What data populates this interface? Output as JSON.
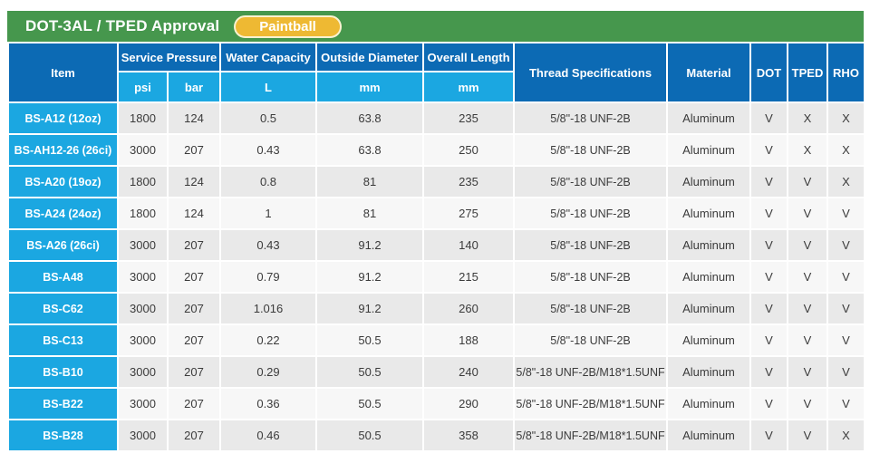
{
  "header": {
    "title": "DOT-3AL / TPED Approval",
    "badge": "Paintball"
  },
  "colors": {
    "header_green": "#46974d",
    "badge_gold": "#eeb933",
    "badge_border": "#faf2d0",
    "header_dark_blue": "#0c6ab4",
    "header_light_blue": "#1ba7e1",
    "item_cell_blue": "#1ba7e1",
    "row_gray": "#e9e9e9",
    "row_light": "#f7f7f7",
    "cell_text": "#3b3b3b"
  },
  "table": {
    "columns": {
      "item": "Item",
      "service_pressure": "Service Pressure",
      "psi": "psi",
      "bar": "bar",
      "water_capacity": "Water Capacity",
      "water_capacity_unit": "L",
      "outside_diameter": "Outside Diameter",
      "outside_diameter_unit": "mm",
      "overall_length": "Overall Length",
      "overall_length_unit": "mm",
      "thread_specifications": "Thread Specifications",
      "material": "Material",
      "dot": "DOT",
      "tped": "TPED",
      "rho": "RHO"
    },
    "rows": [
      {
        "item": "BS-A12 (12oz)",
        "psi": "1800",
        "bar": "124",
        "water_capacity": "0.5",
        "outside_diameter": "63.8",
        "overall_length": "235",
        "thread": "5/8\"-18 UNF-2B",
        "material": "Aluminum",
        "dot": "V",
        "tped": "X",
        "rho": "X"
      },
      {
        "item": "BS-AH12-26 (26ci)",
        "psi": "3000",
        "bar": "207",
        "water_capacity": "0.43",
        "outside_diameter": "63.8",
        "overall_length": "250",
        "thread": "5/8\"-18 UNF-2B",
        "material": "Aluminum",
        "dot": "V",
        "tped": "X",
        "rho": "X"
      },
      {
        "item": "BS-A20 (19oz)",
        "psi": "1800",
        "bar": "124",
        "water_capacity": "0.8",
        "outside_diameter": "81",
        "overall_length": "235",
        "thread": "5/8\"-18 UNF-2B",
        "material": "Aluminum",
        "dot": "V",
        "tped": "V",
        "rho": "X"
      },
      {
        "item": "BS-A24 (24oz)",
        "psi": "1800",
        "bar": "124",
        "water_capacity": "1",
        "outside_diameter": "81",
        "overall_length": "275",
        "thread": "5/8\"-18 UNF-2B",
        "material": "Aluminum",
        "dot": "V",
        "tped": "V",
        "rho": "V"
      },
      {
        "item": "BS-A26 (26ci)",
        "psi": "3000",
        "bar": "207",
        "water_capacity": "0.43",
        "outside_diameter": "91.2",
        "overall_length": "140",
        "thread": "5/8\"-18 UNF-2B",
        "material": "Aluminum",
        "dot": "V",
        "tped": "V",
        "rho": "V"
      },
      {
        "item": "BS-A48",
        "psi": "3000",
        "bar": "207",
        "water_capacity": "0.79",
        "outside_diameter": "91.2",
        "overall_length": "215",
        "thread": "5/8\"-18 UNF-2B",
        "material": "Aluminum",
        "dot": "V",
        "tped": "V",
        "rho": "V"
      },
      {
        "item": "BS-C62",
        "psi": "3000",
        "bar": "207",
        "water_capacity": "1.016",
        "outside_diameter": "91.2",
        "overall_length": "260",
        "thread": "5/8\"-18 UNF-2B",
        "material": "Aluminum",
        "dot": "V",
        "tped": "V",
        "rho": "V"
      },
      {
        "item": "BS-C13",
        "psi": "3000",
        "bar": "207",
        "water_capacity": "0.22",
        "outside_diameter": "50.5",
        "overall_length": "188",
        "thread": "5/8\"-18 UNF-2B",
        "material": "Aluminum",
        "dot": "V",
        "tped": "V",
        "rho": "V"
      },
      {
        "item": "BS-B10",
        "psi": "3000",
        "bar": "207",
        "water_capacity": "0.29",
        "outside_diameter": "50.5",
        "overall_length": "240",
        "thread": "5/8\"-18 UNF-2B/M18*1.5UNF",
        "material": "Aluminum",
        "dot": "V",
        "tped": "V",
        "rho": "V"
      },
      {
        "item": "BS-B22",
        "psi": "3000",
        "bar": "207",
        "water_capacity": "0.36",
        "outside_diameter": "50.5",
        "overall_length": "290",
        "thread": "5/8\"-18 UNF-2B/M18*1.5UNF",
        "material": "Aluminum",
        "dot": "V",
        "tped": "V",
        "rho": "V"
      },
      {
        "item": "BS-B28",
        "psi": "3000",
        "bar": "207",
        "water_capacity": "0.46",
        "outside_diameter": "50.5",
        "overall_length": "358",
        "thread": "5/8\"-18 UNF-2B/M18*1.5UNF",
        "material": "Aluminum",
        "dot": "V",
        "tped": "V",
        "rho": "X"
      }
    ]
  }
}
